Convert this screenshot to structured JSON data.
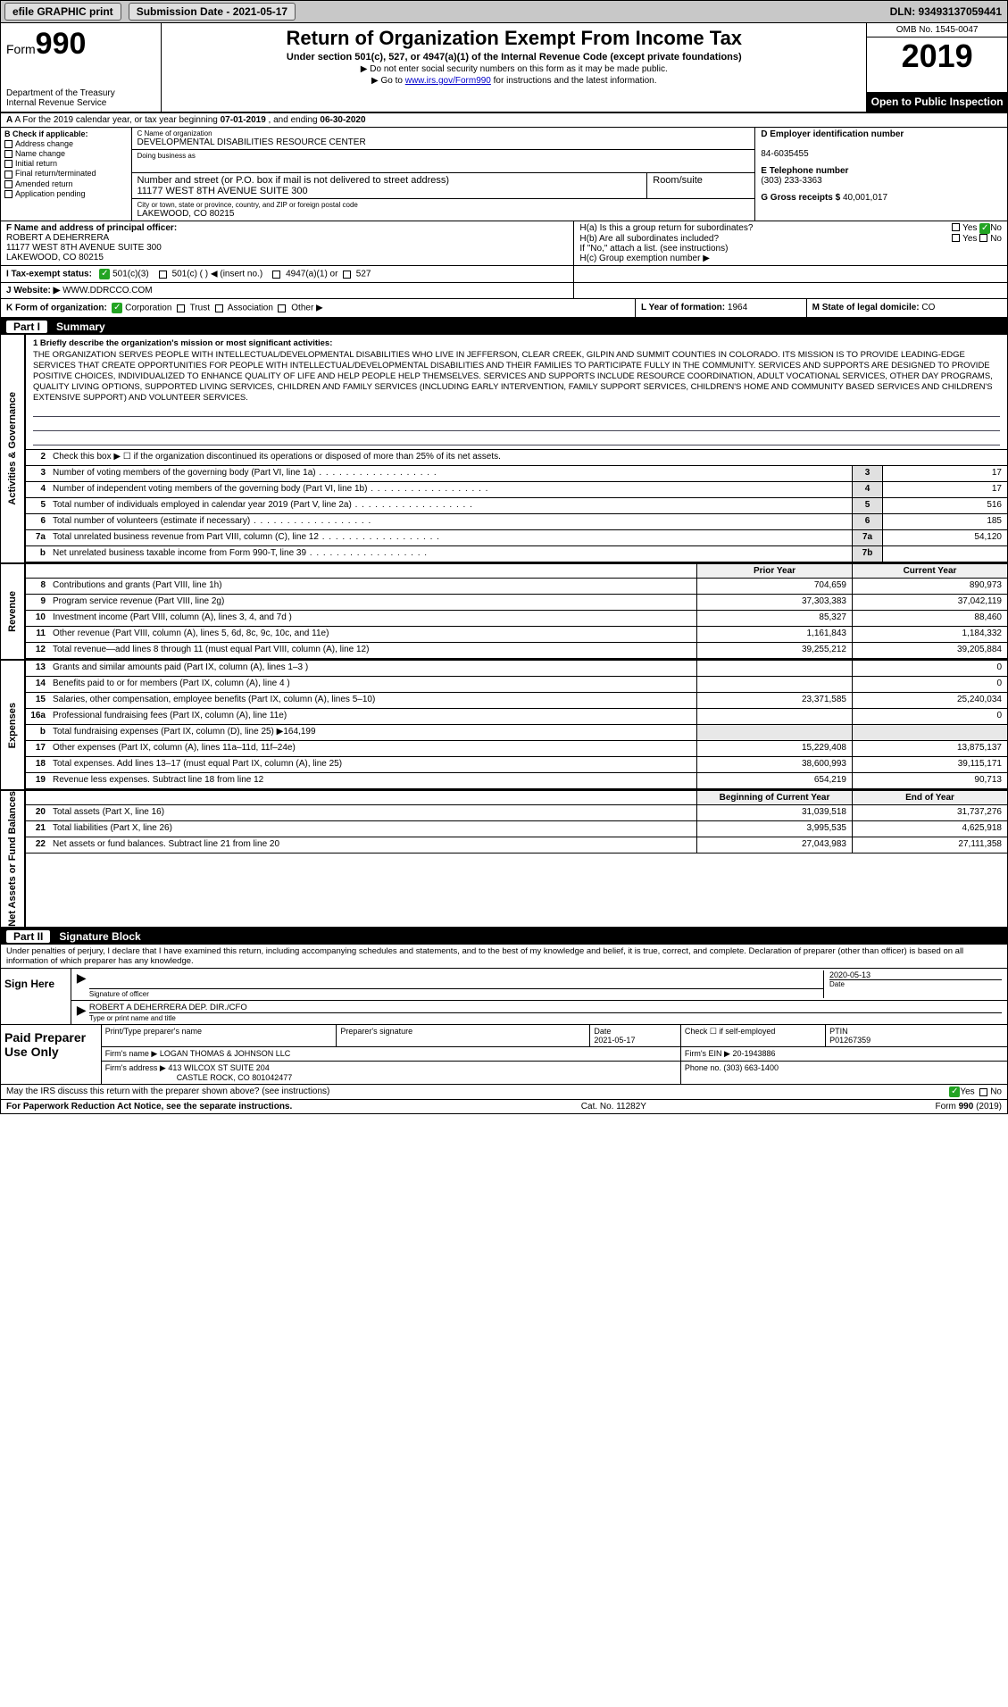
{
  "topbar": {
    "efile_label": "efile GRAPHIC print",
    "submission_label": "Submission Date - 2021-05-17",
    "dln_label": "DLN: 93493137059441"
  },
  "header": {
    "form_prefix": "Form",
    "form_number": "990",
    "dept1": "Department of the Treasury",
    "dept2": "Internal Revenue Service",
    "title": "Return of Organization Exempt From Income Tax",
    "subtitle": "Under section 501(c), 527, or 4947(a)(1) of the Internal Revenue Code (except private foundations)",
    "note1": "▶ Do not enter social security numbers on this form as it may be made public.",
    "note2_pre": "▶ Go to ",
    "note2_link": "www.irs.gov/Form990",
    "note2_post": " for instructions and the latest information.",
    "omb": "OMB No. 1545-0047",
    "year": "2019",
    "open_public": "Open to Public Inspection"
  },
  "line_a": {
    "text_pre": "A For the 2019 calendar year, or tax year beginning ",
    "begin": "07-01-2019",
    "mid": " , and ending ",
    "end": "06-30-2020"
  },
  "col_b": {
    "header": "B Check if applicable:",
    "opts": [
      "Address change",
      "Name change",
      "Initial return",
      "Final return/terminated",
      "Amended return",
      "Application pending"
    ]
  },
  "col_c": {
    "name_lbl": "C Name of organization",
    "name": "DEVELOPMENTAL DISABILITIES RESOURCE CENTER",
    "dba_lbl": "Doing business as",
    "dba": "",
    "street_lbl": "Number and street (or P.O. box if mail is not delivered to street address)",
    "street": "11177 WEST 8TH AVENUE SUITE 300",
    "room_lbl": "Room/suite",
    "room": "",
    "city_lbl": "City or town, state or province, country, and ZIP or foreign postal code",
    "city": "LAKEWOOD, CO  80215"
  },
  "col_d": {
    "d_lbl": "D Employer identification number",
    "ein": "84-6035455",
    "e_lbl": "E Telephone number",
    "phone": "(303) 233-3363",
    "g_lbl": "G Gross receipts $",
    "gross": "40,001,017"
  },
  "col_f": {
    "lbl": "F Name and address of principal officer:",
    "name": "ROBERT A DEHERRERA",
    "addr1": "11177 WEST 8TH AVENUE SUITE 300",
    "addr2": "LAKEWOOD, CO  80215"
  },
  "col_h": {
    "ha": "H(a)  Is this a group return for subordinates?",
    "hb": "H(b)  Are all subordinates included?",
    "hb_note": "If \"No,\" attach a list. (see instructions)",
    "hc": "H(c)  Group exemption number ▶",
    "yes": "Yes",
    "no": "No"
  },
  "row_i": {
    "lbl": "I  Tax-exempt status:",
    "o1": "501(c)(3)",
    "o2": "501(c) (  ) ◀ (insert no.)",
    "o3": "4947(a)(1) or",
    "o4": "527"
  },
  "row_j": {
    "lbl": "J  Website: ▶",
    "val": "WWW.DDRCCO.COM"
  },
  "row_k": {
    "k_lbl": "K Form of organization:",
    "k_corp": "Corporation",
    "k_trust": "Trust",
    "k_assoc": "Association",
    "k_other": "Other ▶",
    "l_lbl": "L Year of formation:",
    "l_val": "1964",
    "m_lbl": "M State of legal domicile:",
    "m_val": "CO"
  },
  "part1": {
    "num": "Part I",
    "title": "Summary"
  },
  "mission": {
    "intro": "1  Briefly describe the organization's mission or most significant activities:",
    "text": "THE ORGANIZATION SERVES PEOPLE WITH INTELLECTUAL/DEVELOPMENTAL DISABILITIES WHO LIVE IN JEFFERSON, CLEAR CREEK, GILPIN AND SUMMIT COUNTIES IN COLORADO. ITS MISSION IS TO PROVIDE LEADING-EDGE SERVICES THAT CREATE OPPORTUNITIES FOR PEOPLE WITH INTELLECTUAL/DEVELOPMENTAL DISABILITIES AND THEIR FAMILIES TO PARTICIPATE FULLY IN THE COMMUNITY. SERVICES AND SUPPORTS ARE DESIGNED TO PROVIDE POSITIVE CHOICES, INDIVIDUALIZED TO ENHANCE QUALITY OF LIFE AND HELP PEOPLE HELP THEMSELVES. SERVICES AND SUPPORTS INCLUDE RESOURCE COORDINATION, ADULT VOCATIONAL SERVICES, OTHER DAY PROGRAMS, QUALITY LIVING OPTIONS, SUPPORTED LIVING SERVICES, CHILDREN AND FAMILY SERVICES (INCLUDING EARLY INTERVENTION, FAMILY SUPPORT SERVICES, CHILDREN'S HOME AND COMMUNITY BASED SERVICES AND CHILDREN'S EXTENSIVE SUPPORT) AND VOLUNTEER SERVICES."
  },
  "gov_rows": [
    {
      "n": "2",
      "desc": "Check this box ▶ ☐ if the organization discontinued its operations or disposed of more than 25% of its net assets.",
      "box": "",
      "val": ""
    },
    {
      "n": "3",
      "desc": "Number of voting members of the governing body (Part VI, line 1a)",
      "box": "3",
      "val": "17"
    },
    {
      "n": "4",
      "desc": "Number of independent voting members of the governing body (Part VI, line 1b)",
      "box": "4",
      "val": "17"
    },
    {
      "n": "5",
      "desc": "Total number of individuals employed in calendar year 2019 (Part V, line 2a)",
      "box": "5",
      "val": "516"
    },
    {
      "n": "6",
      "desc": "Total number of volunteers (estimate if necessary)",
      "box": "6",
      "val": "185"
    },
    {
      "n": "7a",
      "desc": "Total unrelated business revenue from Part VIII, column (C), line 12",
      "box": "7a",
      "val": "54,120"
    },
    {
      "n": "b",
      "desc": "Net unrelated business taxable income from Form 990-T, line 39",
      "box": "7b",
      "val": ""
    }
  ],
  "col_headers": {
    "prior": "Prior Year",
    "current": "Current Year"
  },
  "revenue_rows": [
    {
      "n": "8",
      "desc": "Contributions and grants (Part VIII, line 1h)",
      "c1": "704,659",
      "c2": "890,973"
    },
    {
      "n": "9",
      "desc": "Program service revenue (Part VIII, line 2g)",
      "c1": "37,303,383",
      "c2": "37,042,119"
    },
    {
      "n": "10",
      "desc": "Investment income (Part VIII, column (A), lines 3, 4, and 7d )",
      "c1": "85,327",
      "c2": "88,460"
    },
    {
      "n": "11",
      "desc": "Other revenue (Part VIII, column (A), lines 5, 6d, 8c, 9c, 10c, and 11e)",
      "c1": "1,161,843",
      "c2": "1,184,332"
    },
    {
      "n": "12",
      "desc": "Total revenue—add lines 8 through 11 (must equal Part VIII, column (A), line 12)",
      "c1": "39,255,212",
      "c2": "39,205,884"
    }
  ],
  "expense_rows": [
    {
      "n": "13",
      "desc": "Grants and similar amounts paid (Part IX, column (A), lines 1–3 )",
      "c1": "",
      "c2": "0"
    },
    {
      "n": "14",
      "desc": "Benefits paid to or for members (Part IX, column (A), line 4 )",
      "c1": "",
      "c2": "0"
    },
    {
      "n": "15",
      "desc": "Salaries, other compensation, employee benefits (Part IX, column (A), lines 5–10)",
      "c1": "23,371,585",
      "c2": "25,240,034"
    },
    {
      "n": "16a",
      "desc": "Professional fundraising fees (Part IX, column (A), line 11e)",
      "c1": "",
      "c2": "0"
    },
    {
      "n": "b",
      "desc": "Total fundraising expenses (Part IX, column (D), line 25) ▶164,199",
      "c1": "",
      "c2": "",
      "shade": true
    },
    {
      "n": "17",
      "desc": "Other expenses (Part IX, column (A), lines 11a–11d, 11f–24e)",
      "c1": "15,229,408",
      "c2": "13,875,137"
    },
    {
      "n": "18",
      "desc": "Total expenses. Add lines 13–17 (must equal Part IX, column (A), line 25)",
      "c1": "38,600,993",
      "c2": "39,115,171"
    },
    {
      "n": "19",
      "desc": "Revenue less expenses. Subtract line 18 from line 12",
      "c1": "654,219",
      "c2": "90,713"
    }
  ],
  "na_headers": {
    "begin": "Beginning of Current Year",
    "end": "End of Year"
  },
  "na_rows": [
    {
      "n": "20",
      "desc": "Total assets (Part X, line 16)",
      "c1": "31,039,518",
      "c2": "31,737,276"
    },
    {
      "n": "21",
      "desc": "Total liabilities (Part X, line 26)",
      "c1": "3,995,535",
      "c2": "4,625,918"
    },
    {
      "n": "22",
      "desc": "Net assets or fund balances. Subtract line 21 from line 20",
      "c1": "27,043,983",
      "c2": "27,111,358"
    }
  ],
  "side_labels": {
    "gov": "Activities & Governance",
    "rev": "Revenue",
    "exp": "Expenses",
    "na": "Net Assets or Fund Balances"
  },
  "part2": {
    "num": "Part II",
    "title": "Signature Block"
  },
  "sig": {
    "decl": "Under penalties of perjury, I declare that I have examined this return, including accompanying schedules and statements, and to the best of my knowledge and belief, it is true, correct, and complete. Declaration of preparer (other than officer) is based on all information of which preparer has any knowledge.",
    "sign_here": "Sign Here",
    "sig_lbl": "Signature of officer",
    "date_val": "2020-05-13",
    "date_lbl": "Date",
    "name_val": "ROBERT A DEHERRERA  DEP. DIR./CFO",
    "name_lbl": "Type or print name and title"
  },
  "paid": {
    "label": "Paid Preparer Use Only",
    "h1": "Print/Type preparer's name",
    "h2": "Preparer's signature",
    "h3": "Date",
    "date": "2021-05-17",
    "h4": "Check ☐ if self-employed",
    "h5": "PTIN",
    "ptin": "P01267359",
    "firm_name_lbl": "Firm's name    ▶",
    "firm_name": "LOGAN THOMAS & JOHNSON LLC",
    "firm_ein_lbl": "Firm's EIN ▶",
    "firm_ein": "20-1943886",
    "firm_addr_lbl": "Firm's address ▶",
    "firm_addr1": "413 WILCOX ST SUITE 204",
    "firm_addr2": "CASTLE ROCK, CO  801042477",
    "phone_lbl": "Phone no.",
    "phone": "(303) 663-1400"
  },
  "footer": {
    "discuss": "May the IRS discuss this return with the preparer shown above? (see instructions)",
    "yes": "Yes",
    "no": "No",
    "pra": "For Paperwork Reduction Act Notice, see the separate instructions.",
    "cat": "Cat. No. 11282Y",
    "form": "Form 990 (2019)"
  }
}
